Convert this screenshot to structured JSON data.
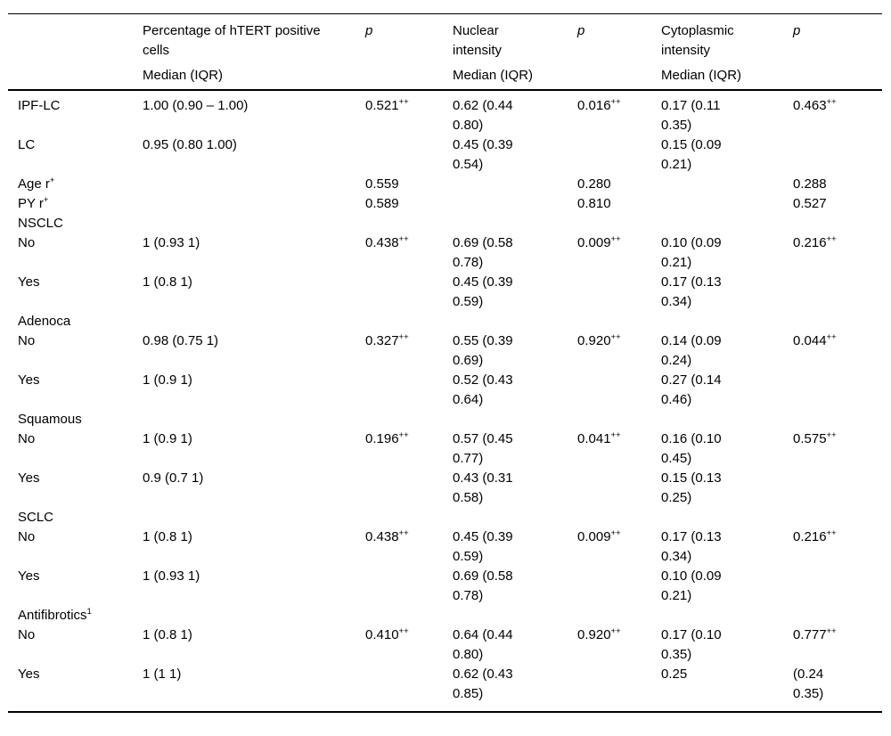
{
  "table": {
    "columns": [
      {
        "title": "",
        "sub": ""
      },
      {
        "title": "Percentage of hTERT positive\ncells",
        "sub": "Median (IQR)"
      },
      {
        "title": "p",
        "sub": ""
      },
      {
        "title": "Nuclear\nintensity",
        "sub": "Median (IQR)"
      },
      {
        "title": "p",
        "sub": ""
      },
      {
        "title": "Cytoplasmic\nintensity",
        "sub": "Median (IQR)"
      },
      {
        "title": "p",
        "sub": ""
      }
    ],
    "rows": [
      {
        "label": {
          "t": "IPF-LC"
        },
        "cells": [
          "1.00 (0.90 – 1.00)",
          {
            "t": "0.521",
            "s": "++"
          },
          "0.62 (0.44\n0.80)",
          {
            "t": "0.016",
            "s": "++"
          },
          "0.17 (0.11\n0.35)",
          {
            "t": "0.463",
            "s": "++"
          }
        ]
      },
      {
        "label": {
          "t": "LC"
        },
        "cells": [
          "0.95 (0.80 1.00)",
          "",
          "0.45 (0.39\n0.54)",
          "",
          "0.15 (0.09\n0.21)",
          ""
        ]
      },
      {
        "label": {
          "t": "Age r",
          "s": "+"
        },
        "cells": [
          "",
          "0.559",
          "",
          "0.280",
          "",
          "0.288"
        ]
      },
      {
        "label": {
          "t": "PY r",
          "s": "+"
        },
        "cells": [
          "",
          "0.589",
          "",
          "0.810",
          "",
          "0.527"
        ]
      },
      {
        "label": {
          "t": "NSCLC"
        },
        "cells": [
          "",
          "",
          "",
          "",
          "",
          ""
        ]
      },
      {
        "label": {
          "t": "No"
        },
        "cells": [
          "1 (0.93 1)",
          {
            "t": "0.438",
            "s": "++"
          },
          "0.69 (0.58\n0.78)",
          {
            "t": "0.009",
            "s": "++"
          },
          "0.10 (0.09\n0.21)",
          {
            "t": "0.216",
            "s": "++"
          }
        ]
      },
      {
        "label": {
          "t": "Yes"
        },
        "cells": [
          "1 (0.8 1)",
          "",
          "0.45 (0.39\n0.59)",
          "",
          "0.17 (0.13\n0.34)",
          ""
        ]
      },
      {
        "label": {
          "t": "Adenoca"
        },
        "cells": [
          "",
          "",
          "",
          "",
          "",
          ""
        ]
      },
      {
        "label": {
          "t": "No"
        },
        "cells": [
          "0.98 (0.75 1)",
          {
            "t": "0.327",
            "s": "++"
          },
          "0.55 (0.39\n0.69)",
          {
            "t": "0.920",
            "s": "++"
          },
          "0.14 (0.09\n0.24)",
          {
            "t": "0.044",
            "s": "++"
          }
        ]
      },
      {
        "label": {
          "t": "Yes"
        },
        "cells": [
          "1 (0.9 1)",
          "",
          "0.52 (0.43\n0.64)",
          "",
          "0.27 (0.14\n0.46)",
          ""
        ]
      },
      {
        "label": {
          "t": "Squamous"
        },
        "cells": [
          "",
          "",
          "",
          "",
          "",
          ""
        ]
      },
      {
        "label": {
          "t": "No"
        },
        "cells": [
          "1 (0.9 1)",
          {
            "t": "0.196",
            "s": "++"
          },
          "0.57 (0.45\n0.77)",
          {
            "t": "0.041",
            "s": "++"
          },
          "0.16 (0.10\n0.45)",
          {
            "t": "0.575",
            "s": "++"
          }
        ]
      },
      {
        "label": {
          "t": "Yes"
        },
        "cells": [
          "0.9 (0.7 1)",
          "",
          "0.43 (0.31\n0.58)",
          "",
          "0.15 (0.13\n0.25)",
          ""
        ]
      },
      {
        "label": {
          "t": "SCLC"
        },
        "cells": [
          "",
          "",
          "",
          "",
          "",
          ""
        ]
      },
      {
        "label": {
          "t": "No"
        },
        "cells": [
          "1 (0.8 1)",
          {
            "t": "0.438",
            "s": "++"
          },
          "0.45 (0.39\n0.59)",
          {
            "t": "0.009",
            "s": "++"
          },
          "0.17 (0.13\n0.34)",
          {
            "t": "0.216",
            "s": "++"
          }
        ]
      },
      {
        "label": {
          "t": "Yes"
        },
        "cells": [
          "1 (0.93 1)",
          "",
          "0.69 (0.58\n0.78)",
          "",
          "0.10 (0.09\n0.21)",
          ""
        ]
      },
      {
        "label": {
          "t": "Antifibrotics",
          "s": "1"
        },
        "cells": [
          "",
          "",
          "",
          "",
          "",
          ""
        ]
      },
      {
        "label": {
          "t": "No"
        },
        "cells": [
          "1 (0.8 1)",
          {
            "t": "0.410",
            "s": "++"
          },
          "0.64 (0.44\n0.80)",
          {
            "t": "0.920",
            "s": "++"
          },
          "0.17 (0.10\n0.35)",
          {
            "t": "0.777",
            "s": "++"
          }
        ]
      },
      {
        "label": {
          "t": "Yes"
        },
        "cells": [
          "1 (1 1)",
          "",
          "0.62 (0.43\n0.85)",
          "",
          "0.25",
          "(0.24\n0.35)"
        ]
      }
    ]
  }
}
